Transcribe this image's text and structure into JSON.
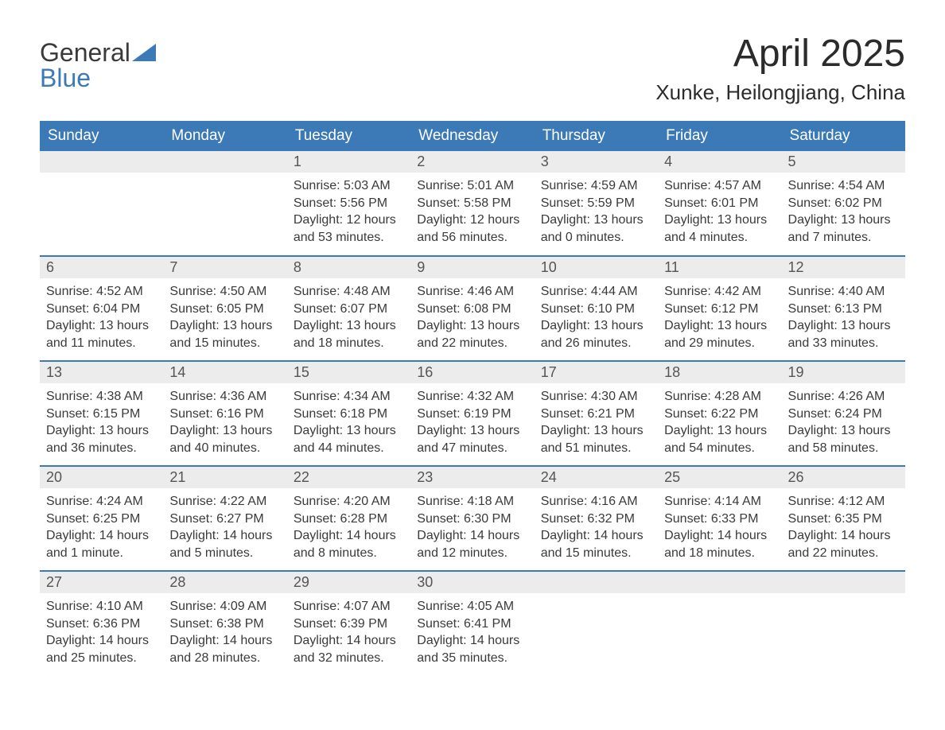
{
  "logo": {
    "word1": "General",
    "word2": "Blue"
  },
  "title": "April 2025",
  "location": "Xunke, Heilongjiang, China",
  "colors": {
    "header_bg": "#3b79b7",
    "header_text": "#ffffff",
    "daynum_bg": "#ececec",
    "row_border": "#3b79b7",
    "body_text": "#3a3a3a",
    "page_bg": "#ffffff"
  },
  "typography": {
    "title_fontsize": 48,
    "location_fontsize": 26,
    "header_cell_fontsize": 19,
    "daynum_fontsize": 18,
    "body_fontsize": 16,
    "font_family": "Arial"
  },
  "layout": {
    "columns": 7,
    "rows": 5,
    "first_weekday_index": 2,
    "days_in_month": 30
  },
  "weekdays": [
    "Sunday",
    "Monday",
    "Tuesday",
    "Wednesday",
    "Thursday",
    "Friday",
    "Saturday"
  ],
  "labels": {
    "sunrise": "Sunrise:",
    "sunset": "Sunset:",
    "daylight": "Daylight:"
  },
  "days": [
    {
      "n": 1,
      "sunrise": "5:03 AM",
      "sunset": "5:56 PM",
      "daylight": "12 hours and 53 minutes."
    },
    {
      "n": 2,
      "sunrise": "5:01 AM",
      "sunset": "5:58 PM",
      "daylight": "12 hours and 56 minutes."
    },
    {
      "n": 3,
      "sunrise": "4:59 AM",
      "sunset": "5:59 PM",
      "daylight": "13 hours and 0 minutes."
    },
    {
      "n": 4,
      "sunrise": "4:57 AM",
      "sunset": "6:01 PM",
      "daylight": "13 hours and 4 minutes."
    },
    {
      "n": 5,
      "sunrise": "4:54 AM",
      "sunset": "6:02 PM",
      "daylight": "13 hours and 7 minutes."
    },
    {
      "n": 6,
      "sunrise": "4:52 AM",
      "sunset": "6:04 PM",
      "daylight": "13 hours and 11 minutes."
    },
    {
      "n": 7,
      "sunrise": "4:50 AM",
      "sunset": "6:05 PM",
      "daylight": "13 hours and 15 minutes."
    },
    {
      "n": 8,
      "sunrise": "4:48 AM",
      "sunset": "6:07 PM",
      "daylight": "13 hours and 18 minutes."
    },
    {
      "n": 9,
      "sunrise": "4:46 AM",
      "sunset": "6:08 PM",
      "daylight": "13 hours and 22 minutes."
    },
    {
      "n": 10,
      "sunrise": "4:44 AM",
      "sunset": "6:10 PM",
      "daylight": "13 hours and 26 minutes."
    },
    {
      "n": 11,
      "sunrise": "4:42 AM",
      "sunset": "6:12 PM",
      "daylight": "13 hours and 29 minutes."
    },
    {
      "n": 12,
      "sunrise": "4:40 AM",
      "sunset": "6:13 PM",
      "daylight": "13 hours and 33 minutes."
    },
    {
      "n": 13,
      "sunrise": "4:38 AM",
      "sunset": "6:15 PM",
      "daylight": "13 hours and 36 minutes."
    },
    {
      "n": 14,
      "sunrise": "4:36 AM",
      "sunset": "6:16 PM",
      "daylight": "13 hours and 40 minutes."
    },
    {
      "n": 15,
      "sunrise": "4:34 AM",
      "sunset": "6:18 PM",
      "daylight": "13 hours and 44 minutes."
    },
    {
      "n": 16,
      "sunrise": "4:32 AM",
      "sunset": "6:19 PM",
      "daylight": "13 hours and 47 minutes."
    },
    {
      "n": 17,
      "sunrise": "4:30 AM",
      "sunset": "6:21 PM",
      "daylight": "13 hours and 51 minutes."
    },
    {
      "n": 18,
      "sunrise": "4:28 AM",
      "sunset": "6:22 PM",
      "daylight": "13 hours and 54 minutes."
    },
    {
      "n": 19,
      "sunrise": "4:26 AM",
      "sunset": "6:24 PM",
      "daylight": "13 hours and 58 minutes."
    },
    {
      "n": 20,
      "sunrise": "4:24 AM",
      "sunset": "6:25 PM",
      "daylight": "14 hours and 1 minute."
    },
    {
      "n": 21,
      "sunrise": "4:22 AM",
      "sunset": "6:27 PM",
      "daylight": "14 hours and 5 minutes."
    },
    {
      "n": 22,
      "sunrise": "4:20 AM",
      "sunset": "6:28 PM",
      "daylight": "14 hours and 8 minutes."
    },
    {
      "n": 23,
      "sunrise": "4:18 AM",
      "sunset": "6:30 PM",
      "daylight": "14 hours and 12 minutes."
    },
    {
      "n": 24,
      "sunrise": "4:16 AM",
      "sunset": "6:32 PM",
      "daylight": "14 hours and 15 minutes."
    },
    {
      "n": 25,
      "sunrise": "4:14 AM",
      "sunset": "6:33 PM",
      "daylight": "14 hours and 18 minutes."
    },
    {
      "n": 26,
      "sunrise": "4:12 AM",
      "sunset": "6:35 PM",
      "daylight": "14 hours and 22 minutes."
    },
    {
      "n": 27,
      "sunrise": "4:10 AM",
      "sunset": "6:36 PM",
      "daylight": "14 hours and 25 minutes."
    },
    {
      "n": 28,
      "sunrise": "4:09 AM",
      "sunset": "6:38 PM",
      "daylight": "14 hours and 28 minutes."
    },
    {
      "n": 29,
      "sunrise": "4:07 AM",
      "sunset": "6:39 PM",
      "daylight": "14 hours and 32 minutes."
    },
    {
      "n": 30,
      "sunrise": "4:05 AM",
      "sunset": "6:41 PM",
      "daylight": "14 hours and 35 minutes."
    }
  ]
}
